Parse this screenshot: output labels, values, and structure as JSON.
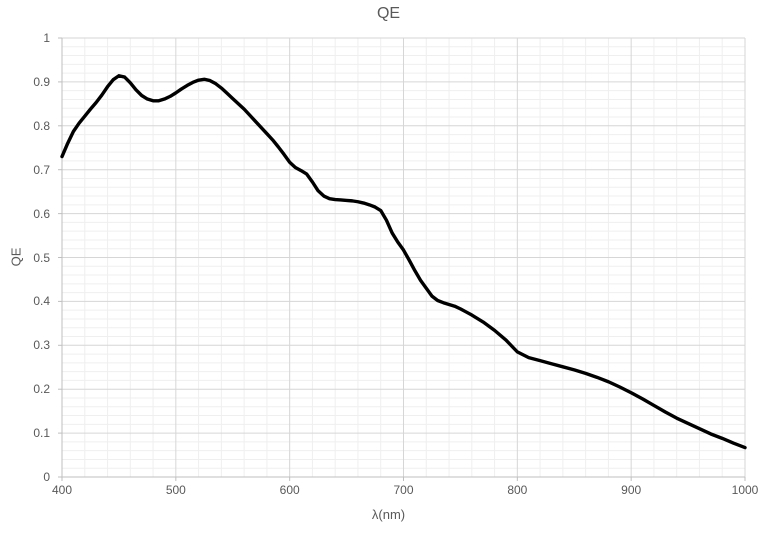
{
  "chart_data": {
    "type": "line",
    "title": "QE",
    "xlabel": "λ(nm)",
    "ylabel": "QE",
    "xlim": [
      400,
      1000
    ],
    "ylim": [
      0,
      1
    ],
    "xtick_values": [
      400,
      500,
      600,
      700,
      800,
      900,
      1000
    ],
    "xtick_labels": [
      "400",
      "500",
      "600",
      "700",
      "800",
      "900",
      "1000"
    ],
    "ytick_values": [
      0,
      0.1,
      0.2,
      0.3,
      0.4,
      0.5,
      0.6,
      0.7,
      0.8,
      0.9,
      1
    ],
    "ytick_labels": [
      "0",
      "0.1",
      "0.2",
      "0.3",
      "0.4",
      "0.5",
      "0.6",
      "0.7",
      "0.8",
      "0.9",
      "1"
    ],
    "minor_x_step": 20,
    "minor_y_step": 0.02,
    "grid": "major and minor, both axes",
    "legend": "none",
    "colors": {
      "line": "#000000",
      "text": "#595959",
      "axis_line": "#bfbfbf",
      "major_grid": "#d6d6d6",
      "minor_grid": "#efefef",
      "background": "#ffffff"
    },
    "series": [
      {
        "name": "QE",
        "x": [
          400,
          405,
          410,
          415,
          420,
          425,
          430,
          435,
          440,
          445,
          450,
          455,
          460,
          465,
          470,
          475,
          480,
          485,
          490,
          495,
          500,
          505,
          510,
          515,
          520,
          525,
          530,
          535,
          540,
          545,
          550,
          555,
          560,
          565,
          570,
          575,
          580,
          585,
          590,
          595,
          600,
          605,
          610,
          615,
          620,
          625,
          630,
          635,
          640,
          645,
          650,
          655,
          660,
          665,
          670,
          675,
          680,
          685,
          690,
          695,
          700,
          705,
          710,
          715,
          720,
          725,
          730,
          735,
          740,
          745,
          750,
          755,
          760,
          770,
          780,
          790,
          800,
          810,
          820,
          830,
          840,
          850,
          860,
          870,
          880,
          890,
          900,
          910,
          920,
          930,
          940,
          950,
          960,
          970,
          980,
          990,
          1000
        ],
        "y": [
          0.73,
          0.76,
          0.787,
          0.806,
          0.822,
          0.838,
          0.853,
          0.87,
          0.889,
          0.905,
          0.914,
          0.911,
          0.898,
          0.882,
          0.869,
          0.861,
          0.857,
          0.857,
          0.861,
          0.867,
          0.875,
          0.884,
          0.892,
          0.899,
          0.904,
          0.906,
          0.903,
          0.896,
          0.886,
          0.874,
          0.862,
          0.85,
          0.838,
          0.824,
          0.81,
          0.796,
          0.782,
          0.768,
          0.752,
          0.735,
          0.717,
          0.705,
          0.698,
          0.69,
          0.672,
          0.652,
          0.64,
          0.634,
          0.632,
          0.631,
          0.63,
          0.629,
          0.627,
          0.624,
          0.62,
          0.615,
          0.607,
          0.585,
          0.556,
          0.535,
          0.517,
          0.494,
          0.47,
          0.448,
          0.43,
          0.412,
          0.402,
          0.397,
          0.393,
          0.389,
          0.383,
          0.376,
          0.369,
          0.353,
          0.334,
          0.312,
          0.285,
          0.272,
          0.265,
          0.258,
          0.251,
          0.244,
          0.236,
          0.227,
          0.217,
          0.205,
          0.192,
          0.178,
          0.163,
          0.148,
          0.134,
          0.122,
          0.11,
          0.098,
          0.088,
          0.077,
          0.067
        ]
      }
    ]
  }
}
